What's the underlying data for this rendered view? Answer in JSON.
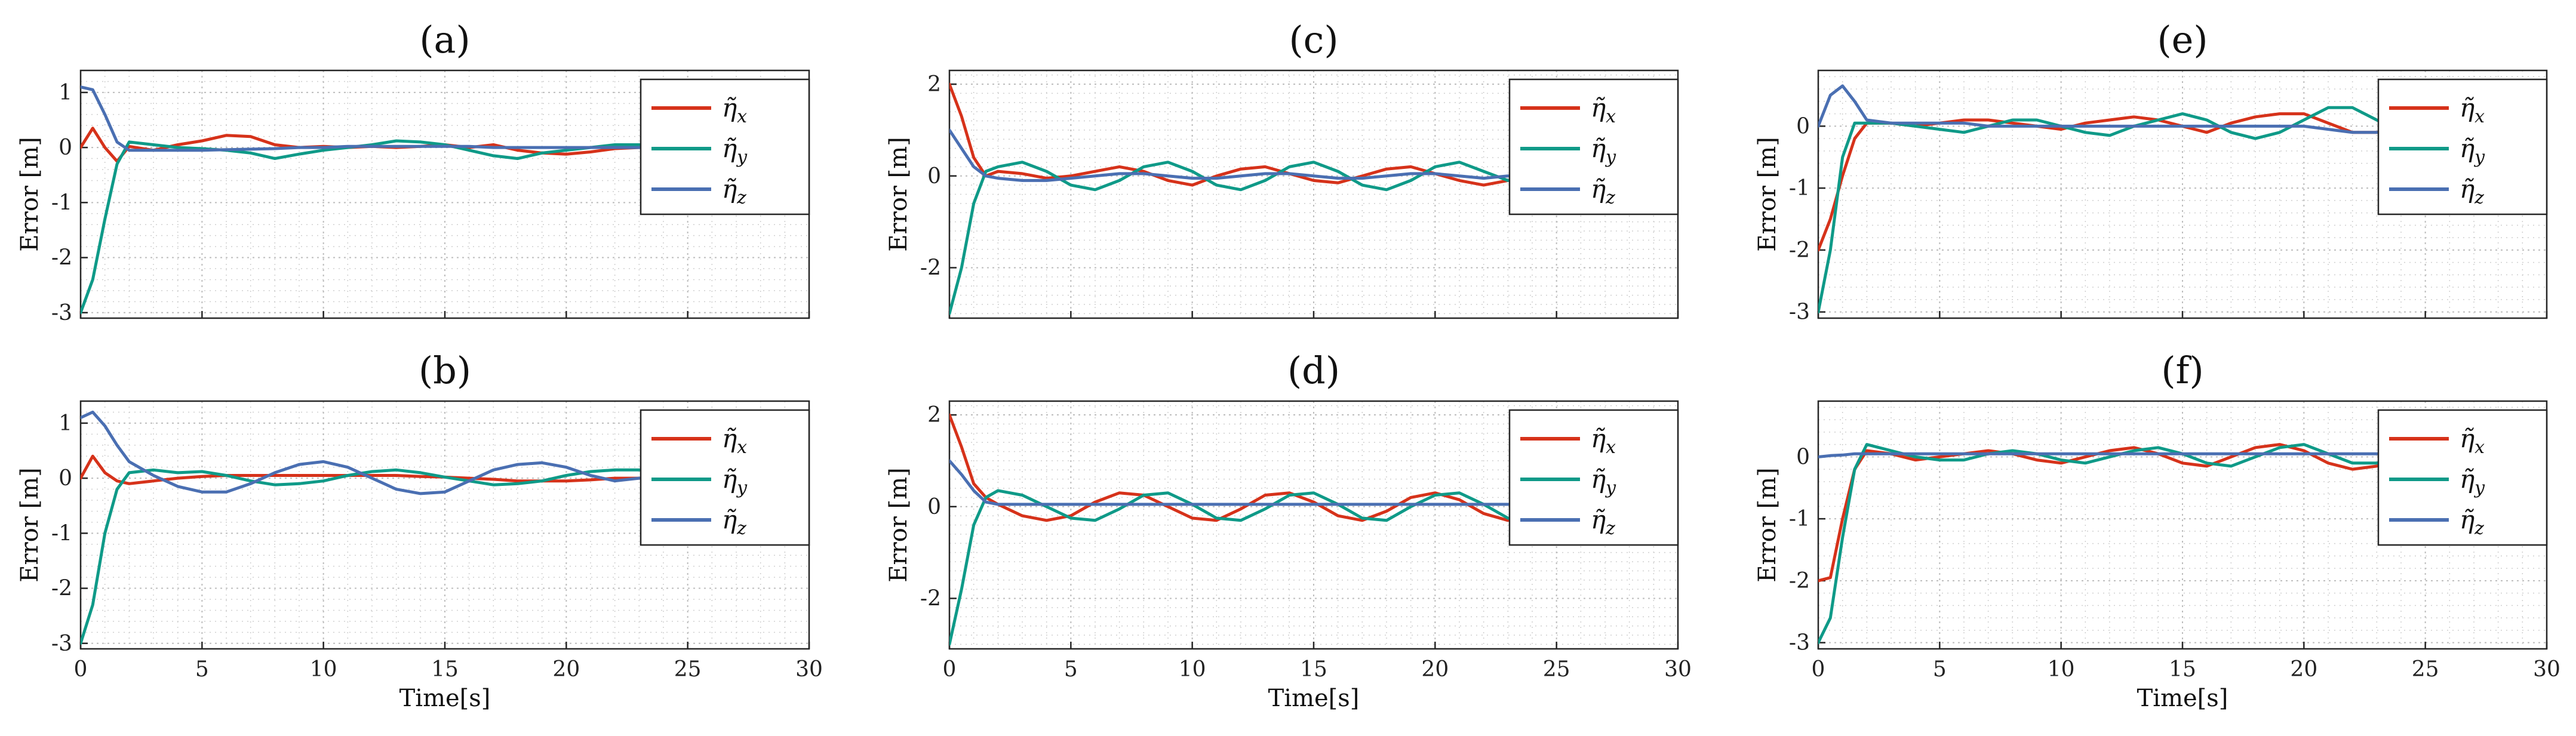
{
  "chart_data": [
    {
      "type": "line",
      "title": "(a)",
      "xlabel": "",
      "ylabel": "Error [m]",
      "xlim": [
        0,
        30
      ],
      "ylim": [
        -3.1,
        1.4
      ],
      "yticks": [
        -3,
        -2,
        -1,
        0,
        1
      ],
      "xticks": [
        0,
        5,
        10,
        15,
        20,
        25,
        30
      ],
      "show_xtick_labels": false,
      "grid": true,
      "legend": "top-right",
      "colors": [
        "#d6321a",
        "#0f9a88",
        "#4a6fb2"
      ],
      "x": [
        0,
        0.5,
        1,
        1.5,
        2,
        3,
        4,
        5,
        6,
        7,
        8,
        9,
        10,
        11,
        12,
        13,
        14,
        15,
        16,
        17,
        18,
        19,
        20,
        21,
        22,
        23,
        24
      ],
      "series": [
        {
          "name": "η̃x",
          "values": [
            0,
            0.35,
            0,
            -0.25,
            0.02,
            -0.05,
            0.05,
            0.12,
            0.22,
            0.2,
            0.05,
            0.0,
            0.02,
            0.0,
            0.02,
            0.0,
            0.02,
            0.05,
            0.0,
            0.05,
            -0.05,
            -0.1,
            -0.12,
            -0.08,
            -0.02,
            0.0,
            0.0
          ]
        },
        {
          "name": "η̃y",
          "values": [
            -3.0,
            -2.4,
            -1.3,
            -0.3,
            0.1,
            0.05,
            0.0,
            -0.02,
            -0.05,
            -0.1,
            -0.2,
            -0.12,
            -0.05,
            0.0,
            0.05,
            0.12,
            0.1,
            0.05,
            -0.05,
            -0.15,
            -0.2,
            -0.1,
            -0.05,
            0.0,
            0.05,
            0.05,
            0.02
          ]
        },
        {
          "name": "η̃z",
          "values": [
            1.1,
            1.05,
            0.6,
            0.1,
            -0.05,
            -0.05,
            -0.05,
            -0.05,
            -0.04,
            -0.03,
            -0.02,
            0.0,
            0.0,
            0.02,
            0.02,
            0.02,
            0.02,
            0.02,
            0.02,
            0.0,
            0.0,
            0.0,
            0.0,
            0.0,
            0.0,
            0.0,
            0.0
          ]
        }
      ]
    },
    {
      "type": "line",
      "title": "(b)",
      "xlabel": "Time[s]",
      "ylabel": "Error [m]",
      "xlim": [
        0,
        30
      ],
      "ylim": [
        -3.1,
        1.4
      ],
      "yticks": [
        -3,
        -2,
        -1,
        0,
        1
      ],
      "xticks": [
        0,
        5,
        10,
        15,
        20,
        25,
        30
      ],
      "show_xtick_labels": true,
      "grid": true,
      "legend": "top-right",
      "colors": [
        "#d6321a",
        "#0f9a88",
        "#4a6fb2"
      ],
      "x": [
        0,
        0.5,
        1,
        1.5,
        2,
        3,
        4,
        5,
        6,
        7,
        8,
        9,
        10,
        11,
        12,
        13,
        14,
        15,
        16,
        17,
        18,
        19,
        20,
        21,
        22,
        23,
        24
      ],
      "series": [
        {
          "name": "η̃x",
          "values": [
            0,
            0.4,
            0.1,
            -0.05,
            -0.1,
            -0.05,
            0.0,
            0.03,
            0.05,
            0.05,
            0.05,
            0.05,
            0.05,
            0.05,
            0.05,
            0.05,
            0.03,
            0.02,
            0.0,
            -0.02,
            -0.05,
            -0.05,
            -0.05,
            -0.03,
            0.0,
            0.0,
            0.0
          ]
        },
        {
          "name": "η̃y",
          "values": [
            -3.0,
            -2.3,
            -1.0,
            -0.2,
            0.1,
            0.15,
            0.1,
            0.12,
            0.05,
            -0.05,
            -0.12,
            -0.1,
            -0.05,
            0.05,
            0.12,
            0.15,
            0.1,
            0.02,
            -0.05,
            -0.12,
            -0.1,
            -0.05,
            0.05,
            0.12,
            0.15,
            0.15,
            0.15
          ]
        },
        {
          "name": "η̃z",
          "values": [
            1.1,
            1.2,
            0.95,
            0.6,
            0.3,
            0.05,
            -0.15,
            -0.25,
            -0.25,
            -0.1,
            0.1,
            0.25,
            0.3,
            0.2,
            0.0,
            -0.2,
            -0.28,
            -0.25,
            -0.05,
            0.15,
            0.25,
            0.28,
            0.2,
            0.05,
            -0.05,
            0.0,
            0.0
          ]
        }
      ]
    },
    {
      "type": "line",
      "title": "(c)",
      "xlabel": "",
      "ylabel": "Error [m]",
      "xlim": [
        0,
        30
      ],
      "ylim": [
        -3.1,
        2.3
      ],
      "yticks": [
        -2,
        0,
        2
      ],
      "xticks": [
        0,
        5,
        10,
        15,
        20,
        25,
        30
      ],
      "show_xtick_labels": false,
      "grid": true,
      "legend": "top-right",
      "colors": [
        "#d6321a",
        "#0f9a88",
        "#4a6fb2"
      ],
      "x": [
        0,
        0.5,
        1,
        1.5,
        2,
        3,
        4,
        5,
        6,
        7,
        8,
        9,
        10,
        11,
        12,
        13,
        14,
        15,
        16,
        17,
        18,
        19,
        20,
        21,
        22,
        23,
        24
      ],
      "series": [
        {
          "name": "η̃x",
          "values": [
            2.0,
            1.3,
            0.4,
            0.0,
            0.1,
            0.05,
            -0.05,
            0.0,
            0.1,
            0.2,
            0.1,
            -0.1,
            -0.2,
            0.0,
            0.15,
            0.2,
            0.05,
            -0.1,
            -0.15,
            0.0,
            0.15,
            0.2,
            0.05,
            -0.1,
            -0.2,
            -0.1,
            0.0
          ]
        },
        {
          "name": "η̃y",
          "values": [
            -3.0,
            -2.0,
            -0.6,
            0.1,
            0.2,
            0.3,
            0.1,
            -0.2,
            -0.3,
            -0.1,
            0.2,
            0.3,
            0.1,
            -0.2,
            -0.3,
            -0.1,
            0.2,
            0.3,
            0.1,
            -0.2,
            -0.3,
            -0.1,
            0.2,
            0.3,
            0.1,
            -0.1,
            0.0
          ]
        },
        {
          "name": "η̃z",
          "values": [
            1.0,
            0.6,
            0.2,
            0.0,
            -0.05,
            -0.1,
            -0.1,
            -0.05,
            0.0,
            0.05,
            0.05,
            0.0,
            -0.05,
            -0.05,
            0.0,
            0.05,
            0.05,
            0.0,
            -0.05,
            -0.05,
            0.0,
            0.05,
            0.05,
            0.0,
            -0.05,
            0.0,
            0.0
          ]
        }
      ]
    },
    {
      "type": "line",
      "title": "(d)",
      "xlabel": "Time[s]",
      "ylabel": "Error [m]",
      "xlim": [
        0,
        30
      ],
      "ylim": [
        -3.1,
        2.3
      ],
      "yticks": [
        -2,
        0,
        2
      ],
      "xticks": [
        0,
        5,
        10,
        15,
        20,
        25,
        30
      ],
      "show_xtick_labels": true,
      "grid": true,
      "legend": "top-right",
      "colors": [
        "#d6321a",
        "#0f9a88",
        "#4a6fb2"
      ],
      "x": [
        0,
        0.5,
        1,
        1.5,
        2,
        3,
        4,
        5,
        6,
        7,
        8,
        9,
        10,
        11,
        12,
        13,
        14,
        15,
        16,
        17,
        18,
        19,
        20,
        21,
        22,
        23,
        24
      ],
      "series": [
        {
          "name": "η̃x",
          "values": [
            2.0,
            1.3,
            0.5,
            0.2,
            0.05,
            -0.2,
            -0.3,
            -0.2,
            0.1,
            0.3,
            0.25,
            0.0,
            -0.25,
            -0.3,
            -0.05,
            0.25,
            0.3,
            0.1,
            -0.2,
            -0.3,
            -0.1,
            0.2,
            0.3,
            0.15,
            -0.15,
            -0.3,
            -0.2
          ]
        },
        {
          "name": "η̃y",
          "values": [
            -3.0,
            -1.8,
            -0.4,
            0.2,
            0.35,
            0.25,
            0.0,
            -0.25,
            -0.3,
            -0.05,
            0.25,
            0.3,
            0.05,
            -0.25,
            -0.3,
            -0.05,
            0.25,
            0.3,
            0.05,
            -0.25,
            -0.3,
            0.0,
            0.25,
            0.3,
            0.05,
            -0.25,
            -0.3
          ]
        },
        {
          "name": "η̃z",
          "values": [
            1.0,
            0.7,
            0.35,
            0.1,
            0.05,
            0.05,
            0.05,
            0.05,
            0.05,
            0.05,
            0.05,
            0.05,
            0.05,
            0.05,
            0.05,
            0.05,
            0.05,
            0.05,
            0.05,
            0.05,
            0.05,
            0.05,
            0.05,
            0.05,
            0.05,
            0.05,
            0.05
          ]
        }
      ]
    },
    {
      "type": "line",
      "title": "(e)",
      "xlabel": "",
      "ylabel": "Error [m]",
      "xlim": [
        0,
        30
      ],
      "ylim": [
        -3.1,
        0.9
      ],
      "yticks": [
        -3,
        -2,
        -1,
        0
      ],
      "xticks": [
        0,
        5,
        10,
        15,
        20,
        25,
        30
      ],
      "show_xtick_labels": false,
      "grid": true,
      "legend": "top-right",
      "colors": [
        "#d6321a",
        "#0f9a88",
        "#4a6fb2"
      ],
      "x": [
        0,
        0.5,
        1,
        1.5,
        2,
        3,
        4,
        5,
        6,
        7,
        8,
        9,
        10,
        11,
        12,
        13,
        14,
        15,
        16,
        17,
        18,
        19,
        20,
        21,
        22,
        23,
        24
      ],
      "series": [
        {
          "name": "η̃x",
          "values": [
            -2.0,
            -1.5,
            -0.8,
            -0.2,
            0.05,
            0.05,
            0.0,
            0.05,
            0.1,
            0.1,
            0.05,
            0.0,
            -0.05,
            0.05,
            0.1,
            0.15,
            0.1,
            0.0,
            -0.1,
            0.05,
            0.15,
            0.2,
            0.2,
            0.05,
            -0.1,
            -0.1,
            0.0
          ]
        },
        {
          "name": "η̃y",
          "values": [
            -3.0,
            -2.0,
            -0.5,
            0.05,
            0.05,
            0.05,
            0.0,
            -0.05,
            -0.1,
            0.0,
            0.1,
            0.1,
            0.0,
            -0.1,
            -0.15,
            0.0,
            0.1,
            0.2,
            0.1,
            -0.1,
            -0.2,
            -0.1,
            0.1,
            0.3,
            0.3,
            0.1,
            -0.1
          ]
        },
        {
          "name": "η̃z",
          "values": [
            0.0,
            0.5,
            0.65,
            0.4,
            0.1,
            0.05,
            0.05,
            0.05,
            0.05,
            0.0,
            0.0,
            0.0,
            0.0,
            0.0,
            0.0,
            0.0,
            0.0,
            0.0,
            0.0,
            0.0,
            0.0,
            0.0,
            0.0,
            -0.05,
            -0.1,
            -0.1,
            -0.05
          ]
        }
      ]
    },
    {
      "type": "line",
      "title": "(f)",
      "xlabel": "Time[s]",
      "ylabel": "Error [m]",
      "xlim": [
        0,
        30
      ],
      "ylim": [
        -3.1,
        0.9
      ],
      "yticks": [
        -3,
        -2,
        -1,
        0
      ],
      "xticks": [
        0,
        5,
        10,
        15,
        20,
        25,
        30
      ],
      "show_xtick_labels": true,
      "grid": true,
      "legend": "top-right",
      "colors": [
        "#d6321a",
        "#0f9a88",
        "#4a6fb2"
      ],
      "x": [
        0,
        0.5,
        1,
        1.5,
        2,
        3,
        4,
        5,
        6,
        7,
        8,
        9,
        10,
        11,
        12,
        13,
        14,
        15,
        16,
        17,
        18,
        19,
        20,
        21,
        22,
        23,
        24
      ],
      "series": [
        {
          "name": "η̃x",
          "values": [
            -2.0,
            -1.95,
            -1.0,
            -0.2,
            0.1,
            0.05,
            -0.05,
            0.0,
            0.05,
            0.1,
            0.05,
            -0.05,
            -0.1,
            0.0,
            0.1,
            0.15,
            0.05,
            -0.1,
            -0.15,
            0.0,
            0.15,
            0.2,
            0.1,
            -0.1,
            -0.2,
            -0.15,
            0.0
          ]
        },
        {
          "name": "η̃y",
          "values": [
            -3.0,
            -2.6,
            -1.3,
            -0.2,
            0.2,
            0.1,
            0.0,
            -0.05,
            -0.05,
            0.05,
            0.1,
            0.05,
            -0.05,
            -0.1,
            0.0,
            0.1,
            0.15,
            0.05,
            -0.1,
            -0.15,
            0.0,
            0.15,
            0.2,
            0.05,
            -0.1,
            -0.1,
            0.0
          ]
        },
        {
          "name": "η̃z",
          "values": [
            0.0,
            0.02,
            0.03,
            0.05,
            0.05,
            0.05,
            0.05,
            0.05,
            0.05,
            0.05,
            0.05,
            0.05,
            0.05,
            0.05,
            0.05,
            0.05,
            0.05,
            0.05,
            0.05,
            0.05,
            0.05,
            0.05,
            0.05,
            0.05,
            0.05,
            0.05,
            0.05
          ]
        }
      ]
    }
  ]
}
